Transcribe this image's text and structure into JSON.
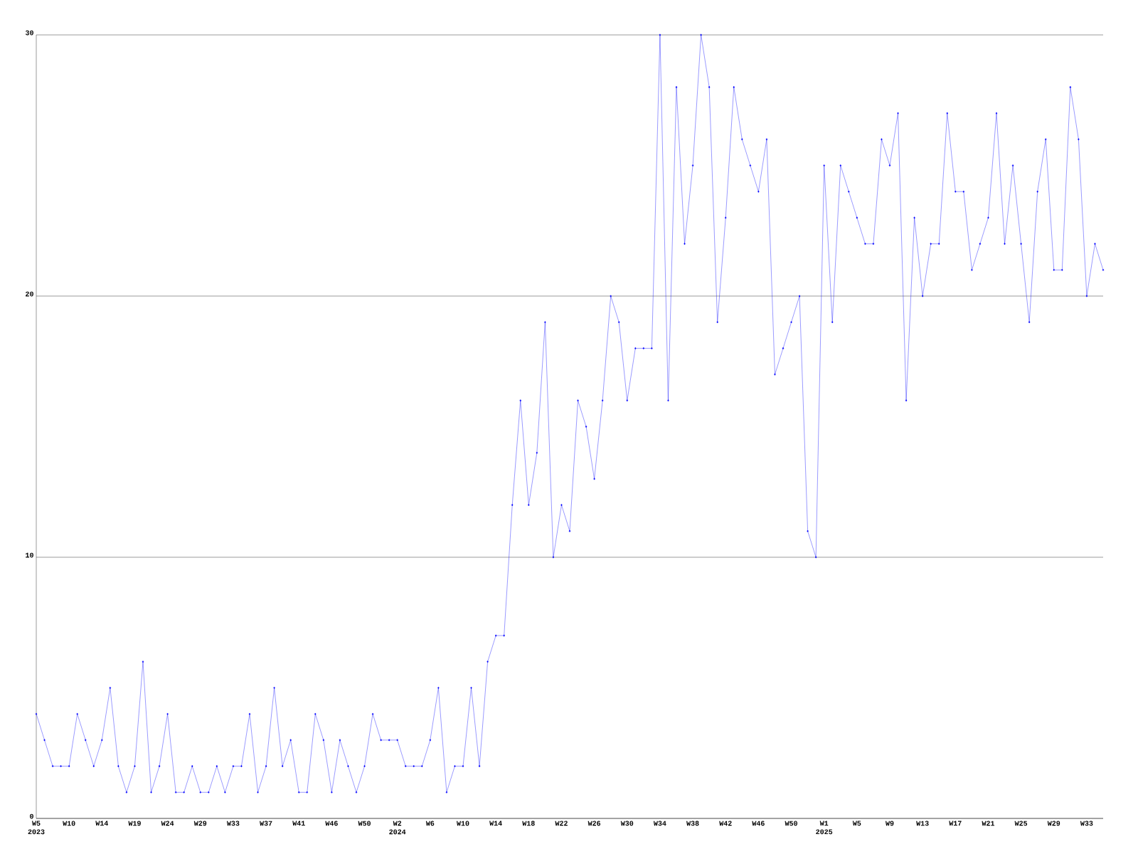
{
  "chart_data": {
    "type": "line",
    "categories": [
      "W5 2023",
      null,
      null,
      null,
      "W10",
      null,
      null,
      null,
      "W14",
      null,
      null,
      null,
      "W19",
      null,
      null,
      null,
      "W24",
      null,
      null,
      null,
      "W29",
      null,
      null,
      null,
      "W33",
      null,
      null,
      null,
      "W37",
      null,
      null,
      null,
      "W41",
      null,
      null,
      null,
      "W46",
      null,
      null,
      null,
      "W50",
      null,
      null,
      null,
      "W2 2024",
      null,
      null,
      null,
      "W6",
      null,
      null,
      null,
      "W10",
      null,
      null,
      null,
      "W14",
      null,
      null,
      null,
      "W18",
      null,
      null,
      null,
      "W22",
      null,
      null,
      null,
      "W26",
      null,
      null,
      null,
      "W30",
      null,
      null,
      null,
      "W34",
      null,
      null,
      null,
      "W38",
      null,
      null,
      null,
      "W42",
      null,
      null,
      null,
      "W46",
      null,
      null,
      null,
      "W50",
      null,
      null,
      null,
      "W1 2025",
      null,
      null,
      null,
      "W5",
      null,
      null,
      null,
      "W9",
      null,
      null,
      null,
      "W13",
      null,
      null,
      null,
      "W17",
      null,
      null,
      null,
      "W21",
      null,
      null,
      null,
      "W25",
      null,
      null,
      null,
      "W29",
      null,
      null,
      null,
      "W33",
      null,
      null
    ],
    "values": [
      4,
      3,
      2,
      2,
      2,
      4,
      3,
      2,
      3,
      5,
      2,
      1,
      2,
      6,
      1,
      2,
      4,
      1,
      1,
      2,
      1,
      1,
      2,
      1,
      2,
      2,
      4,
      1,
      2,
      5,
      2,
      3,
      1,
      1,
      4,
      3,
      1,
      3,
      2,
      1,
      2,
      4,
      3,
      3,
      3,
      2,
      2,
      2,
      3,
      5,
      1,
      2,
      2,
      5,
      2,
      6,
      7,
      7,
      12,
      16,
      12,
      14,
      19,
      10,
      12,
      11,
      16,
      15,
      13,
      16,
      20,
      19,
      16,
      18,
      18,
      18,
      30,
      16,
      28,
      22,
      25,
      30,
      28,
      19,
      23,
      28,
      26,
      25,
      24,
      26,
      17,
      18,
      19,
      20,
      11,
      10,
      25,
      19,
      25,
      24,
      23,
      22,
      22,
      26,
      25,
      27,
      16,
      23,
      20,
      22,
      22,
      27,
      24,
      24,
      21,
      22,
      23,
      27,
      22,
      25,
      22,
      19,
      24,
      26,
      21,
      21,
      28,
      26,
      20,
      22,
      21
    ],
    "color": "#0000ff",
    "ylim": [
      0,
      30
    ],
    "yticks": [
      0,
      10,
      20,
      30
    ],
    "grid": "y",
    "marker": "diamond"
  }
}
